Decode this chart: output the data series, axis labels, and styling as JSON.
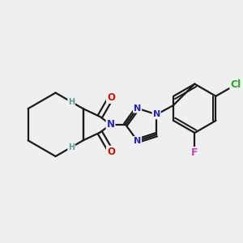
{
  "bg_color": "#efefef",
  "bond_color": "#1a1a1a",
  "bond_width": 1.6,
  "atom_colors": {
    "C": "#1a1a1a",
    "N": "#2222cc",
    "O": "#cc1100",
    "H": "#5a9a9a",
    "Cl": "#22aa22",
    "F": "#cc44bb"
  },
  "font_size": 8.5
}
